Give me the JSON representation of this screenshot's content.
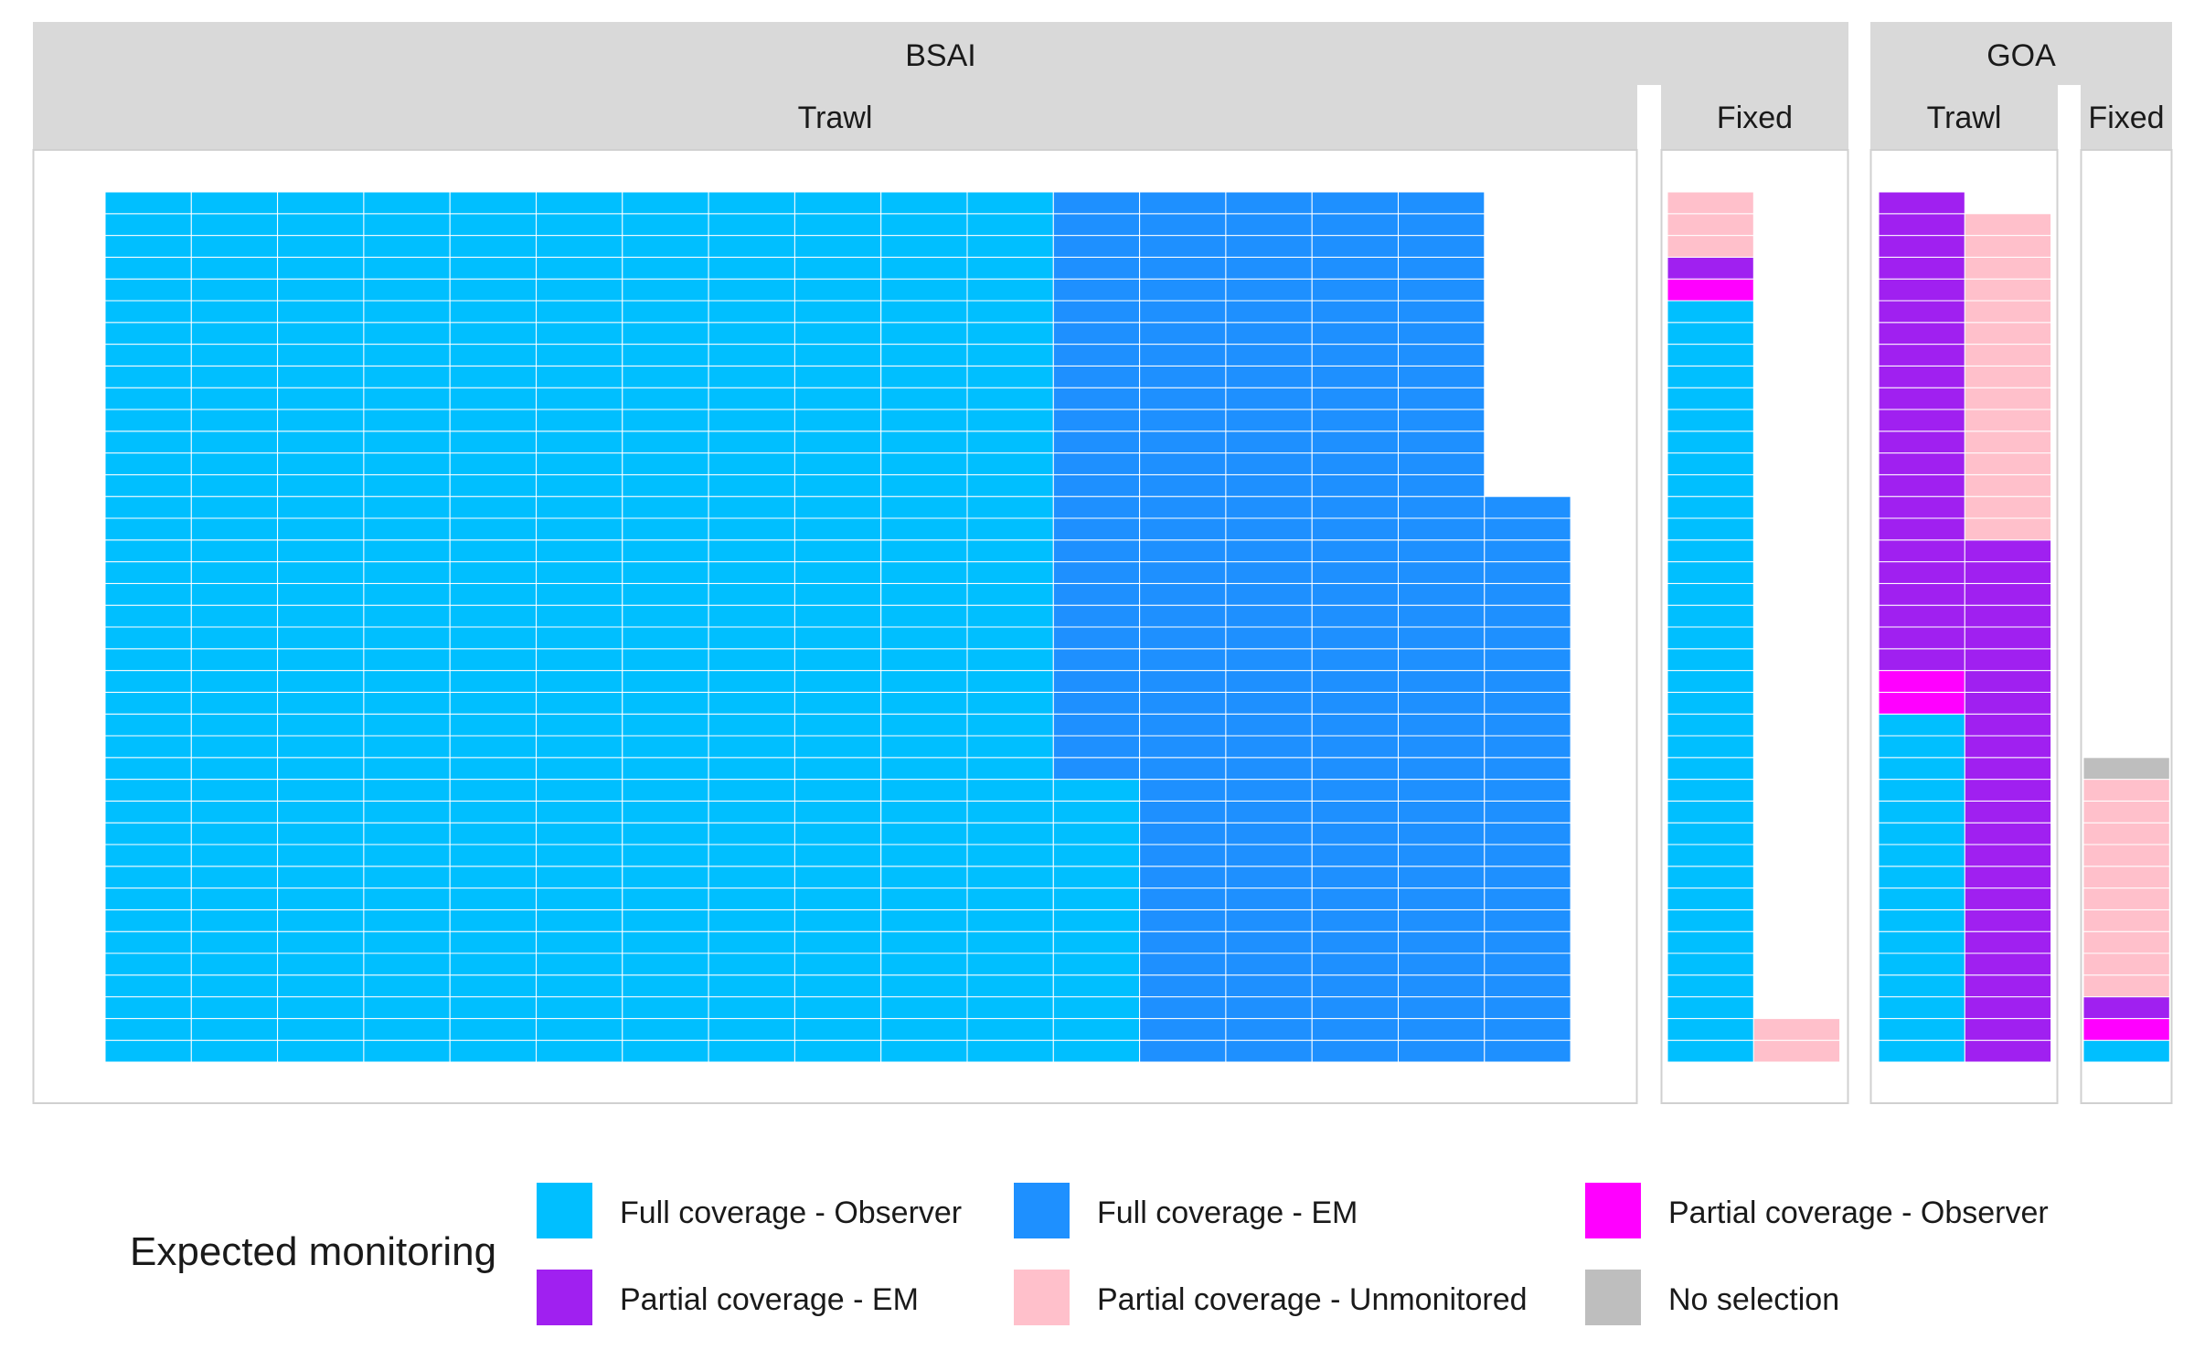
{
  "chart_data": {
    "type": "waffle",
    "legend": {
      "title": "Expected monitoring",
      "position": "bottom",
      "items": [
        {
          "key": "full_obs",
          "label": "Full coverage - Observer",
          "color": "#00BFFF"
        },
        {
          "key": "full_em",
          "label": "Full coverage - EM",
          "color": "#1E90FF"
        },
        {
          "key": "part_obs",
          "label": "Partial coverage - Observer",
          "color": "#FF00FF"
        },
        {
          "key": "part_em",
          "label": "Partial coverage - EM",
          "color": "#A020F0"
        },
        {
          "key": "part_unmon",
          "label": "Partial coverage - Unmonitored",
          "color": "#FFC0CB"
        },
        {
          "key": "no_sel",
          "label": "No selection",
          "color": "#BEBEBE"
        }
      ]
    },
    "rows_per_column": 40,
    "regions": [
      {
        "name": "BSAI",
        "gears": [
          {
            "name": "Trawl",
            "columns": [
              [
                {
                  "cat": "full_obs",
                  "n": 40
                }
              ],
              [
                {
                  "cat": "full_obs",
                  "n": 40
                }
              ],
              [
                {
                  "cat": "full_obs",
                  "n": 40
                }
              ],
              [
                {
                  "cat": "full_obs",
                  "n": 40
                }
              ],
              [
                {
                  "cat": "full_obs",
                  "n": 40
                }
              ],
              [
                {
                  "cat": "full_obs",
                  "n": 40
                }
              ],
              [
                {
                  "cat": "full_obs",
                  "n": 40
                }
              ],
              [
                {
                  "cat": "full_obs",
                  "n": 40
                }
              ],
              [
                {
                  "cat": "full_obs",
                  "n": 40
                }
              ],
              [
                {
                  "cat": "full_obs",
                  "n": 40
                }
              ],
              [
                {
                  "cat": "full_obs",
                  "n": 40
                }
              ],
              [
                {
                  "cat": "full_obs",
                  "n": 13
                },
                {
                  "cat": "full_em",
                  "n": 27
                }
              ],
              [
                {
                  "cat": "full_em",
                  "n": 40
                }
              ],
              [
                {
                  "cat": "full_em",
                  "n": 40
                }
              ],
              [
                {
                  "cat": "full_em",
                  "n": 40
                }
              ],
              [
                {
                  "cat": "full_em",
                  "n": 40
                }
              ],
              [
                {
                  "cat": "full_em",
                  "n": 26
                }
              ]
            ]
          },
          {
            "name": "Fixed",
            "columns": [
              [
                {
                  "cat": "full_obs",
                  "n": 35
                },
                {
                  "cat": "part_obs",
                  "n": 1
                },
                {
                  "cat": "part_em",
                  "n": 1
                },
                {
                  "cat": "part_unmon",
                  "n": 3
                }
              ],
              [
                {
                  "cat": "part_unmon",
                  "n": 2
                }
              ]
            ]
          }
        ]
      },
      {
        "name": "GOA",
        "gears": [
          {
            "name": "Trawl",
            "columns": [
              [
                {
                  "cat": "full_obs",
                  "n": 16
                },
                {
                  "cat": "part_obs",
                  "n": 2
                },
                {
                  "cat": "part_em",
                  "n": 22
                }
              ],
              [
                {
                  "cat": "part_em",
                  "n": 24
                },
                {
                  "cat": "part_unmon",
                  "n": 15
                }
              ]
            ]
          },
          {
            "name": "Fixed",
            "columns": [
              [
                {
                  "cat": "full_obs",
                  "n": 1
                },
                {
                  "cat": "part_obs",
                  "n": 1
                },
                {
                  "cat": "part_em",
                  "n": 1
                },
                {
                  "cat": "part_unmon",
                  "n": 10
                },
                {
                  "cat": "no_sel",
                  "n": 1
                }
              ]
            ]
          }
        ]
      }
    ]
  }
}
